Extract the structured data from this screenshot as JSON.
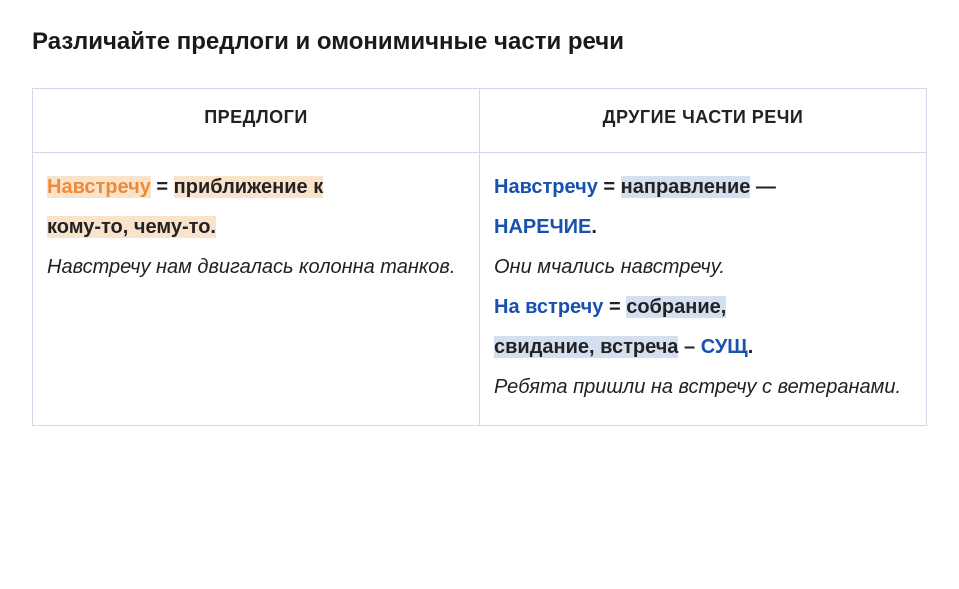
{
  "title": "Различайте предлоги и омонимичные части речи",
  "headers": {
    "left": "ПРЕДЛОГИ",
    "right": "ДРУГИЕ ЧАСТИ РЕЧИ"
  },
  "left": {
    "kw": "Навстречу",
    "eq": " = ",
    "def1": "приближение к ",
    "def2": "кому-то, чему-то.",
    "example": "Навстречу нам двигалась колонна танков."
  },
  "right": {
    "kw1": "Навстречу",
    "eq1": " = ",
    "def1a": "направление",
    "dash1": " — ",
    "pos1": "НАРЕЧИЕ",
    "period1": ".",
    "example1": "Они мчались навстречу.",
    "kw2": "На  встречу",
    "eq2": " = ",
    "def2a": "собрание, ",
    "def2b": "свидание, встреча",
    "dash2": " – ",
    "pos2": "СУЩ",
    "period2": ".",
    "example2": "Ребята пришли на встречу с ветеранами."
  },
  "colors": {
    "orange": "#ed8b3a",
    "blue": "#1851b0",
    "peach_hl": "#fae3cb",
    "blue_hl": "#d4dfef",
    "border": "#d6d5ea",
    "text": "#1a1a1a"
  }
}
